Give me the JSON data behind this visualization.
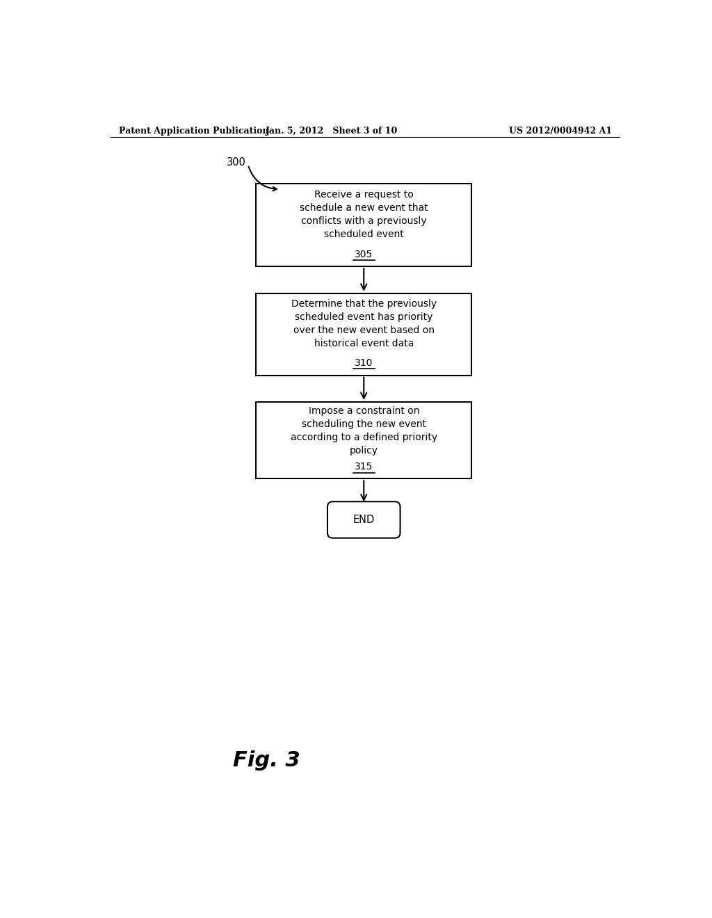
{
  "bg_color": "#ffffff",
  "header_left": "Patent Application Publication",
  "header_mid": "Jan. 5, 2012   Sheet 3 of 10",
  "header_right": "US 2012/0004942 A1",
  "label_300": "300",
  "box1_lines": [
    "Receive a request to",
    "schedule a new event that",
    "conflicts with a previously",
    "scheduled event"
  ],
  "box1_num": "305",
  "box2_lines": [
    "Determine that the previously",
    "scheduled event has priority",
    "over the new event based on",
    "historical event data"
  ],
  "box2_num": "310",
  "box3_lines": [
    "Impose a constraint on",
    "scheduling the new event",
    "according to a defined priority",
    "policy"
  ],
  "box3_num": "315",
  "end_label": "END",
  "fig_label": "Fig. 3",
  "box_color": "#ffffff",
  "box_edge_color": "#000000",
  "text_color": "#000000",
  "arrow_color": "#000000"
}
